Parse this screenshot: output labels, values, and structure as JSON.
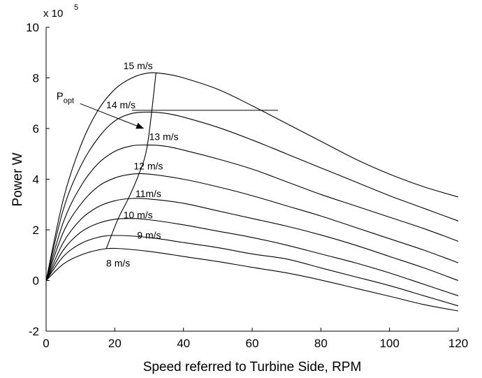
{
  "chart_data": {
    "type": "line",
    "xlabel": "Speed referred to Turbine Side, RPM",
    "ylabel": "Power W",
    "multiplier_base": "x 10",
    "multiplier_exp": "5",
    "xlim": [
      0,
      120
    ],
    "ylim": [
      -2,
      10
    ],
    "x_ticks": [
      0,
      20,
      40,
      60,
      80,
      100,
      120
    ],
    "y_ticks": [
      -2,
      0,
      2,
      4,
      6,
      8,
      10
    ],
    "grid": false,
    "series": [
      {
        "name": "8 m/s",
        "x": [
          0,
          5,
          10,
          15,
          20,
          30,
          40,
          50,
          60,
          70,
          80,
          90,
          100,
          110,
          120
        ],
        "values": [
          0,
          0.65,
          1.0,
          1.2,
          1.27,
          1.15,
          0.95,
          0.75,
          0.52,
          0.3,
          0.02,
          -0.3,
          -0.62,
          -0.95,
          -1.2
        ]
      },
      {
        "name": "9 m/s",
        "x": [
          0,
          5,
          10,
          15,
          20,
          30,
          40,
          50,
          60,
          70,
          80,
          90,
          100,
          110,
          120
        ],
        "values": [
          0,
          0.95,
          1.45,
          1.7,
          1.78,
          1.7,
          1.5,
          1.3,
          1.05,
          0.85,
          0.5,
          0.15,
          -0.2,
          -0.6,
          -1.0
        ]
      },
      {
        "name": "10 m/s",
        "x": [
          0,
          5,
          10,
          15,
          20,
          25,
          30,
          40,
          50,
          60,
          70,
          80,
          90,
          100,
          110,
          120
        ],
        "values": [
          0,
          1.2,
          1.9,
          2.25,
          2.42,
          2.45,
          2.4,
          2.2,
          1.95,
          1.7,
          1.4,
          1.05,
          0.7,
          0.3,
          -0.15,
          -0.6
        ]
      },
      {
        "name": "11m/s",
        "x": [
          0,
          5,
          10,
          15,
          20,
          25,
          30,
          40,
          50,
          60,
          70,
          80,
          90,
          100,
          110,
          120
        ],
        "values": [
          0,
          1.5,
          2.4,
          2.9,
          3.15,
          3.24,
          3.22,
          3.05,
          2.75,
          2.45,
          2.15,
          1.8,
          1.4,
          0.95,
          0.5,
          0.0
        ]
      },
      {
        "name": "12 m/s",
        "x": [
          0,
          5,
          10,
          15,
          20,
          25,
          30,
          40,
          50,
          60,
          70,
          80,
          90,
          100,
          110,
          120
        ],
        "values": [
          0,
          1.9,
          3.0,
          3.7,
          4.05,
          4.2,
          4.2,
          4.0,
          3.7,
          3.35,
          2.95,
          2.55,
          2.1,
          1.65,
          1.2,
          0.7
        ]
      },
      {
        "name": "13 m/s",
        "x": [
          0,
          5,
          10,
          15,
          20,
          25,
          30,
          35,
          40,
          50,
          60,
          70,
          80,
          90,
          100,
          110,
          120
        ],
        "values": [
          0,
          2.3,
          3.7,
          4.6,
          5.1,
          5.32,
          5.35,
          5.3,
          5.15,
          4.8,
          4.4,
          3.9,
          3.4,
          2.95,
          2.5,
          2.05,
          1.55
        ]
      },
      {
        "name": "14 m/s",
        "x": [
          0,
          5,
          10,
          15,
          20,
          25,
          30,
          35,
          40,
          50,
          60,
          70,
          80,
          90,
          100,
          110,
          120
        ],
        "values": [
          0,
          2.8,
          4.5,
          5.6,
          6.3,
          6.6,
          6.65,
          6.6,
          6.45,
          6.05,
          5.55,
          5.0,
          4.45,
          3.9,
          3.35,
          2.85,
          2.35
        ]
      },
      {
        "name": "15 m/s",
        "x": [
          0,
          5,
          10,
          15,
          20,
          25,
          30,
          35,
          40,
          50,
          60,
          70,
          80,
          90,
          100,
          110,
          120
        ],
        "values": [
          0,
          3.2,
          5.3,
          6.7,
          7.55,
          8.0,
          8.2,
          8.15,
          8.0,
          7.55,
          6.9,
          6.2,
          5.5,
          4.8,
          4.2,
          3.7,
          3.3
        ]
      }
    ],
    "popt_line": {
      "x": [
        17.5,
        21,
        24,
        27,
        29.5,
        32
      ],
      "values": [
        1.25,
        2.45,
        3.25,
        4.2,
        5.35,
        8.2
      ]
    },
    "horizontal_line": {
      "x": [
        25,
        67.5
      ],
      "values": [
        6.72,
        6.72
      ]
    },
    "annotation": {
      "label_main": "P",
      "label_sub": "opt",
      "label_at": [
        3,
        7.15
      ],
      "arrow_to": [
        28.5,
        6.0
      ]
    },
    "curve_labels": [
      {
        "text": "15 m/s",
        "x": 22.5,
        "y": 8.35
      },
      {
        "text": "14 m/s",
        "x": 17.5,
        "y": 6.8
      },
      {
        "text": "13 m/s",
        "x": 30,
        "y": 5.55
      },
      {
        "text": "12 m/s",
        "x": 25.5,
        "y": 4.38
      },
      {
        "text": "11m/s",
        "x": 26,
        "y": 3.3
      },
      {
        "text": "10 m/s",
        "x": 22.5,
        "y": 2.45
      },
      {
        "text": "9 m/s",
        "x": 26.5,
        "y": 1.65
      },
      {
        "text": "8 m/s",
        "x": 17.5,
        "y": 0.55
      }
    ]
  }
}
